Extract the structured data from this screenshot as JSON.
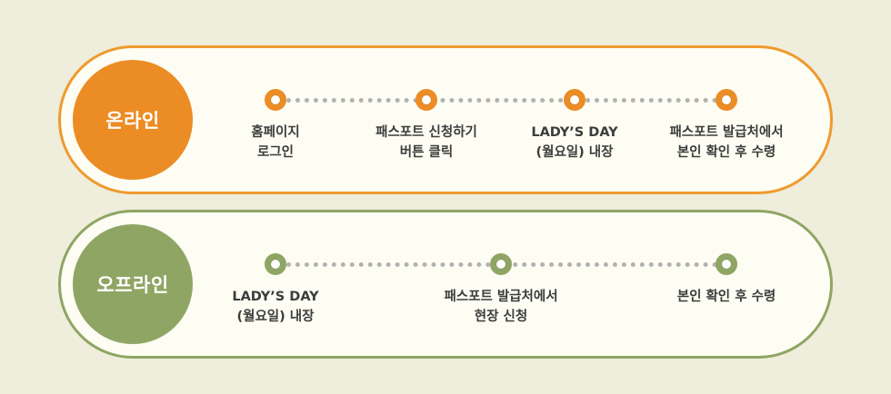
{
  "online": {
    "title": "온라인",
    "steps": [
      {
        "line1": "홈페이지",
        "line2": "로그인"
      },
      {
        "line1": "패스포트 신청하기",
        "line2": "버튼 클릭"
      },
      {
        "line1": "LADY’S DAY",
        "line2": "(월요일) 내장"
      },
      {
        "line1": "패스포트 발급처에서",
        "line2": "본인 확인 후 수령"
      }
    ],
    "accent_color": "#ec8c24"
  },
  "offline": {
    "title": "오프라인",
    "steps": [
      {
        "line1": "LADY’S DAY",
        "line2": "(월요일) 내장"
      },
      {
        "line1": "패스포트 발급처에서",
        "line2": "현장 신청"
      },
      {
        "line1": "본인 확인 후 수령",
        "line2": ""
      }
    ],
    "accent_color": "#8fa564"
  }
}
